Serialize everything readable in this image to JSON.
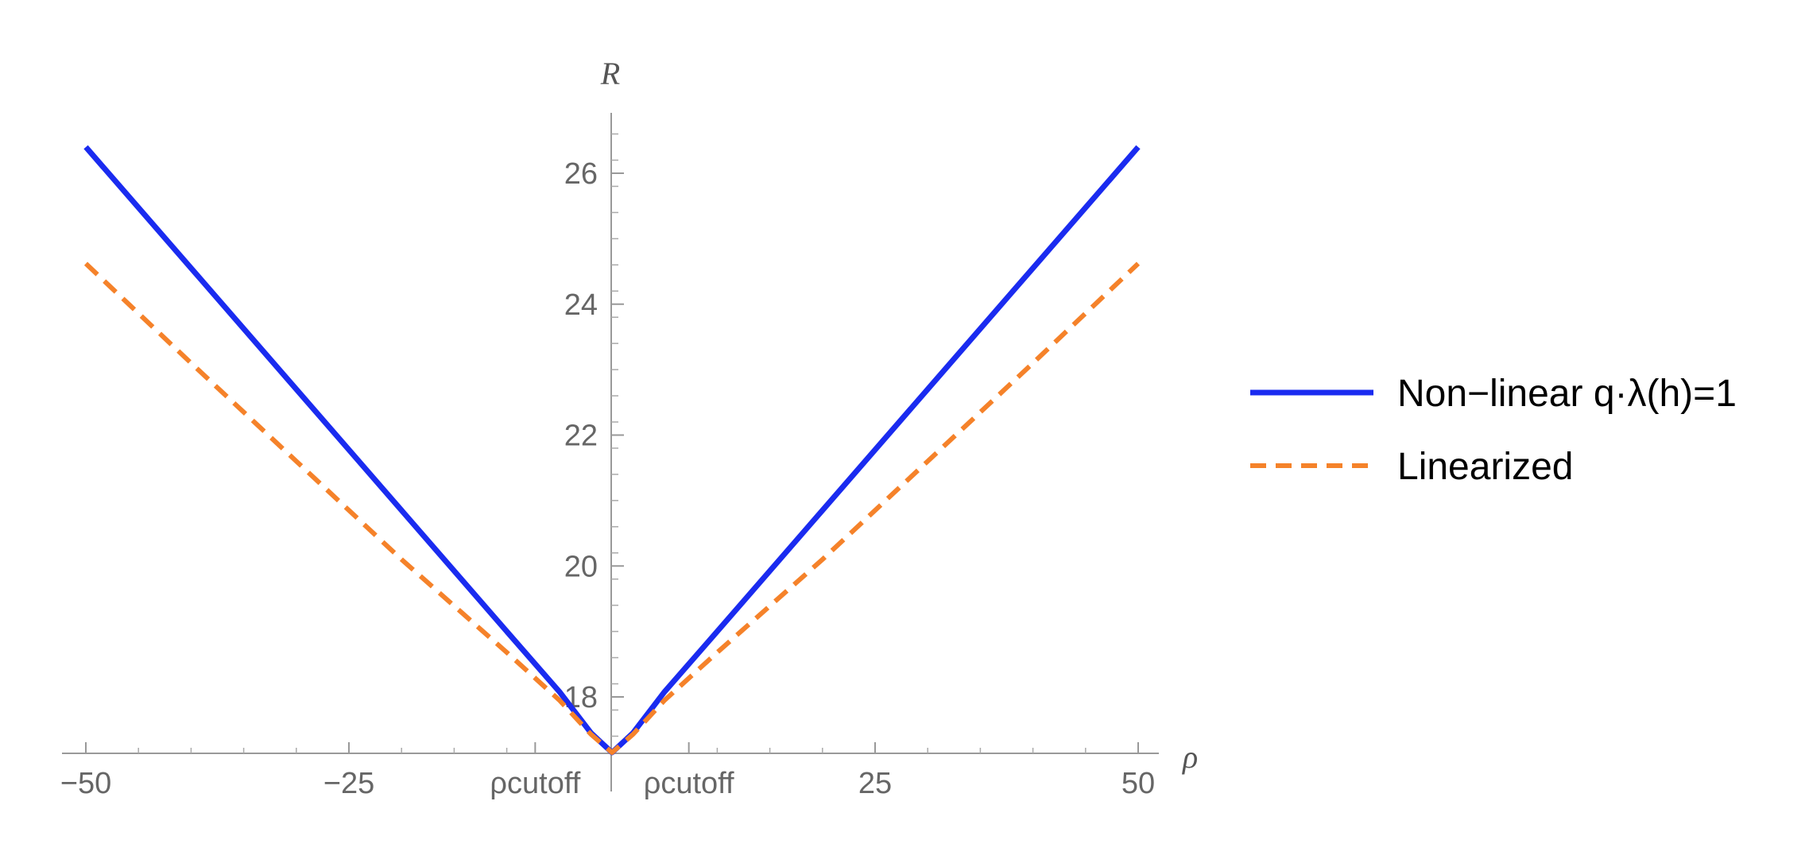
{
  "chart_data": {
    "type": "line",
    "xlabel": "ρ",
    "ylabel": "R",
    "xlim": [
      -52.5,
      52.5
    ],
    "ylim": [
      17.15,
      26.9
    ],
    "x_ticks": [
      {
        "value": -50,
        "label": "−50"
      },
      {
        "value": -25,
        "label": "−25"
      },
      {
        "value": -7.3,
        "label": "ρcutoff"
      },
      {
        "value": 7.3,
        "label": "ρcutoff"
      },
      {
        "value": 25,
        "label": "25"
      },
      {
        "value": 50,
        "label": "50"
      }
    ],
    "y_ticks": [
      {
        "value": 18,
        "label": "18"
      },
      {
        "value": 20,
        "label": "20"
      },
      {
        "value": 22,
        "label": "22"
      },
      {
        "value": 24,
        "label": "24"
      },
      {
        "value": 26,
        "label": "26"
      }
    ],
    "series": [
      {
        "name": "Non−linear q·λ(h)=1",
        "color": "#1a2bf0",
        "style": "solid",
        "x": [
          -50,
          -40,
          -30,
          -20,
          -10,
          -5,
          -2,
          0,
          2,
          5,
          10,
          20,
          30,
          40,
          50
        ],
        "y": [
          26.4,
          24.55,
          22.7,
          20.85,
          19.0,
          18.08,
          17.45,
          17.15,
          17.45,
          18.08,
          19.0,
          20.85,
          22.7,
          24.55,
          26.4
        ]
      },
      {
        "name": "Linearized",
        "color": "#f5822a",
        "style": "dashed",
        "x": [
          -50,
          -40,
          -30,
          -20,
          -10,
          -5,
          -2,
          0,
          2,
          5,
          10,
          20,
          30,
          40,
          50
        ],
        "y": [
          24.62,
          23.1,
          21.6,
          20.1,
          18.68,
          17.95,
          17.43,
          17.15,
          17.43,
          17.95,
          18.68,
          20.1,
          21.6,
          23.1,
          24.62
        ]
      }
    ],
    "legend": "right",
    "grid": false
  }
}
